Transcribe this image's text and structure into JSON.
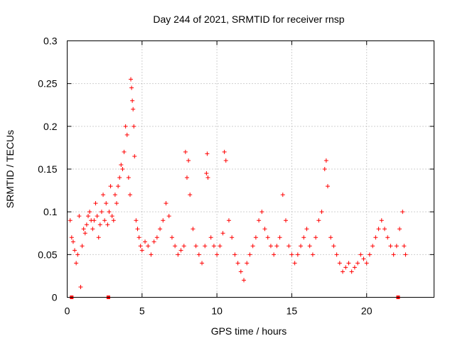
{
  "chart_data": {
    "type": "scatter",
    "title": "Day 244 of 2021, SRMTID for receiver rnsp",
    "xlabel": "GPS time / hours",
    "ylabel": "SRMTID / TECUs",
    "xlim": [
      0,
      24.5
    ],
    "ylim": [
      0,
      0.3
    ],
    "x_ticks": [
      0,
      5,
      10,
      15,
      20
    ],
    "x_tick_labels": [
      "0",
      "5",
      "10",
      "15",
      "20"
    ],
    "y_ticks": [
      0,
      0.05,
      0.1,
      0.15,
      0.2,
      0.25,
      0.3
    ],
    "y_tick_labels": [
      "0",
      "0.05",
      "0.1",
      "0.15",
      "0.2",
      "0.25",
      "0.3"
    ],
    "grid": true,
    "marker": "+",
    "color": "#ff0000",
    "series": [
      {
        "name": "SRMTID",
        "points": [
          [
            0.2,
            0.09
          ],
          [
            0.3,
            0.07
          ],
          [
            0.4,
            0.065
          ],
          [
            0.5,
            0.055
          ],
          [
            0.6,
            0.04
          ],
          [
            0.7,
            0.05
          ],
          [
            0.8,
            0.095
          ],
          [
            0.9,
            0.012
          ],
          [
            1.0,
            0.06
          ],
          [
            1.1,
            0.08
          ],
          [
            1.2,
            0.075
          ],
          [
            1.3,
            0.085
          ],
          [
            1.4,
            0.095
          ],
          [
            1.5,
            0.1
          ],
          [
            1.6,
            0.09
          ],
          [
            1.7,
            0.08
          ],
          [
            1.8,
            0.09
          ],
          [
            1.9,
            0.11
          ],
          [
            2.0,
            0.095
          ],
          [
            2.1,
            0.07
          ],
          [
            2.2,
            0.085
          ],
          [
            2.3,
            0.1
          ],
          [
            2.4,
            0.12
          ],
          [
            2.5,
            0.09
          ],
          [
            2.6,
            0.11
          ],
          [
            2.7,
            0.085
          ],
          [
            2.8,
            0.1
          ],
          [
            2.9,
            0.13
          ],
          [
            3.0,
            0.095
          ],
          [
            3.1,
            0.09
          ],
          [
            3.2,
            0.12
          ],
          [
            3.3,
            0.11
          ],
          [
            3.4,
            0.13
          ],
          [
            3.5,
            0.14
          ],
          [
            3.6,
            0.155
          ],
          [
            3.7,
            0.15
          ],
          [
            3.8,
            0.17
          ],
          [
            3.9,
            0.2
          ],
          [
            4.0,
            0.19
          ],
          [
            4.1,
            0.14
          ],
          [
            4.2,
            0.12
          ],
          [
            4.25,
            0.255
          ],
          [
            4.3,
            0.245
          ],
          [
            4.35,
            0.23
          ],
          [
            4.4,
            0.22
          ],
          [
            4.45,
            0.2
          ],
          [
            4.5,
            0.165
          ],
          [
            4.6,
            0.09
          ],
          [
            4.7,
            0.08
          ],
          [
            4.8,
            0.07
          ],
          [
            4.9,
            0.06
          ],
          [
            5.0,
            0.055
          ],
          [
            5.2,
            0.065
          ],
          [
            5.4,
            0.06
          ],
          [
            5.6,
            0.05
          ],
          [
            5.8,
            0.065
          ],
          [
            6.0,
            0.07
          ],
          [
            6.2,
            0.08
          ],
          [
            6.4,
            0.09
          ],
          [
            6.6,
            0.11
          ],
          [
            6.8,
            0.095
          ],
          [
            7.0,
            0.07
          ],
          [
            7.2,
            0.06
          ],
          [
            7.4,
            0.05
          ],
          [
            7.6,
            0.055
          ],
          [
            7.8,
            0.06
          ],
          [
            7.9,
            0.17
          ],
          [
            8.0,
            0.14
          ],
          [
            8.1,
            0.16
          ],
          [
            8.2,
            0.12
          ],
          [
            8.4,
            0.08
          ],
          [
            8.6,
            0.06
          ],
          [
            8.8,
            0.05
          ],
          [
            9.0,
            0.04
          ],
          [
            9.2,
            0.06
          ],
          [
            9.3,
            0.145
          ],
          [
            9.35,
            0.168
          ],
          [
            9.4,
            0.14
          ],
          [
            9.6,
            0.07
          ],
          [
            9.8,
            0.06
          ],
          [
            10.0,
            0.05
          ],
          [
            10.2,
            0.06
          ],
          [
            10.4,
            0.075
          ],
          [
            10.5,
            0.17
          ],
          [
            10.6,
            0.16
          ],
          [
            10.8,
            0.09
          ],
          [
            11.0,
            0.07
          ],
          [
            11.2,
            0.05
          ],
          [
            11.4,
            0.04
          ],
          [
            11.6,
            0.03
          ],
          [
            11.8,
            0.02
          ],
          [
            12.0,
            0.04
          ],
          [
            12.2,
            0.05
          ],
          [
            12.4,
            0.06
          ],
          [
            12.6,
            0.07
          ],
          [
            12.8,
            0.09
          ],
          [
            13.0,
            0.1
          ],
          [
            13.2,
            0.08
          ],
          [
            13.4,
            0.07
          ],
          [
            13.6,
            0.06
          ],
          [
            13.8,
            0.05
          ],
          [
            14.0,
            0.06
          ],
          [
            14.2,
            0.07
          ],
          [
            14.4,
            0.12
          ],
          [
            14.6,
            0.09
          ],
          [
            14.8,
            0.06
          ],
          [
            15.0,
            0.05
          ],
          [
            15.2,
            0.04
          ],
          [
            15.4,
            0.05
          ],
          [
            15.6,
            0.06
          ],
          [
            15.8,
            0.07
          ],
          [
            16.0,
            0.08
          ],
          [
            16.2,
            0.06
          ],
          [
            16.4,
            0.05
          ],
          [
            16.6,
            0.07
          ],
          [
            16.8,
            0.09
          ],
          [
            17.0,
            0.1
          ],
          [
            17.2,
            0.15
          ],
          [
            17.3,
            0.16
          ],
          [
            17.4,
            0.13
          ],
          [
            17.6,
            0.07
          ],
          [
            17.8,
            0.06
          ],
          [
            18.0,
            0.05
          ],
          [
            18.2,
            0.04
          ],
          [
            18.4,
            0.03
          ],
          [
            18.6,
            0.035
          ],
          [
            18.8,
            0.04
          ],
          [
            19.0,
            0.03
          ],
          [
            19.2,
            0.035
          ],
          [
            19.4,
            0.04
          ],
          [
            19.6,
            0.05
          ],
          [
            19.8,
            0.045
          ],
          [
            20.0,
            0.04
          ],
          [
            20.2,
            0.05
          ],
          [
            20.4,
            0.06
          ],
          [
            20.6,
            0.07
          ],
          [
            20.8,
            0.08
          ],
          [
            21.0,
            0.09
          ],
          [
            21.2,
            0.08
          ],
          [
            21.4,
            0.07
          ],
          [
            21.6,
            0.06
          ],
          [
            21.8,
            0.05
          ],
          [
            22.0,
            0.06
          ],
          [
            22.2,
            0.08
          ],
          [
            22.4,
            0.1
          ],
          [
            22.5,
            0.06
          ],
          [
            22.6,
            0.05
          ]
        ]
      }
    ],
    "gap_markers": [
      0.3,
      2.75,
      22.1
    ]
  }
}
